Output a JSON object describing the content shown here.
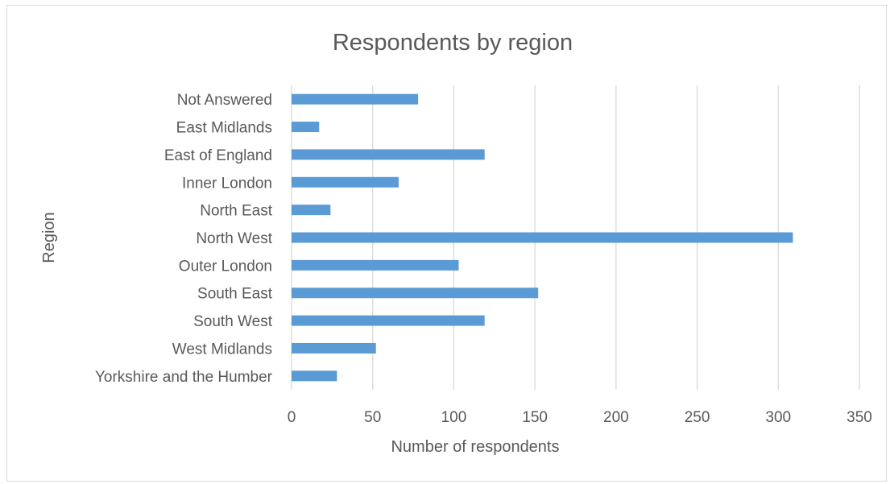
{
  "chart_data": {
    "type": "bar",
    "orientation": "horizontal",
    "title": "Respondents by region",
    "xlabel": "Number of respondents",
    "ylabel": "Region",
    "categories": [
      "Not Answered",
      "East Midlands",
      "East of England",
      "Inner London",
      "North East",
      "North West",
      "Outer London",
      "South East",
      "South West",
      "West Midlands",
      "Yorkshire and the Humber"
    ],
    "values": [
      78,
      17,
      119,
      66,
      24,
      309,
      103,
      152,
      119,
      52,
      28
    ],
    "xlim": [
      0,
      350
    ],
    "xticks": [
      "0",
      "50",
      "100",
      "150",
      "200",
      "250",
      "300",
      "350"
    ],
    "grid": true,
    "legend": "none",
    "bar_color": "#5b9bd5",
    "grid_color": "#d9d9d9"
  }
}
